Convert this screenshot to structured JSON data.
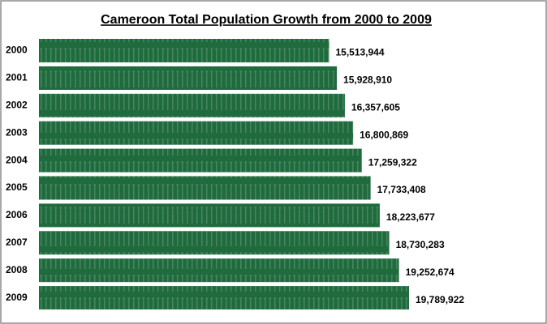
{
  "chart_data": {
    "type": "hbar",
    "title": "Cameroon Total Population Growth from 2000 to 2009",
    "categories": [
      "2000",
      "2001",
      "2002",
      "2003",
      "2004",
      "2005",
      "2006",
      "2007",
      "2008",
      "2009"
    ],
    "values": [
      15513944,
      15928910,
      16357605,
      16800869,
      17259322,
      17733408,
      18223677,
      18730283,
      19252674,
      19789922
    ],
    "value_labels": [
      "15,513,944",
      "15,928,910",
      "16,357,605",
      "16,800,869",
      "17,259,322",
      "17,733,408",
      "18,223,677",
      "18,730,283",
      "19,252,674",
      "19,789,922"
    ],
    "color": "#1f6b3d"
  }
}
